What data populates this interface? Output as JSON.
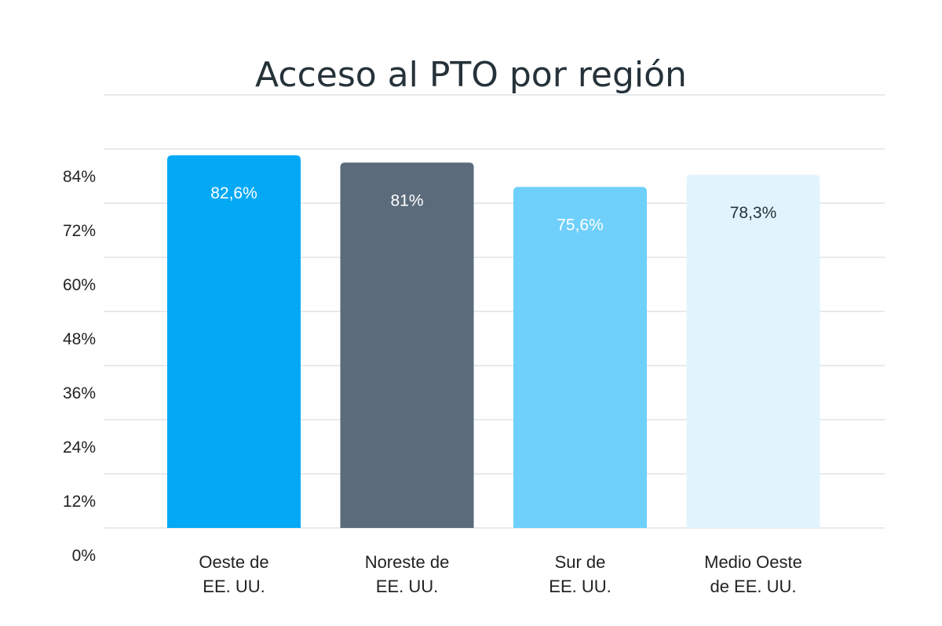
{
  "chart_data": {
    "type": "bar",
    "title": "Acceso al PTO por región",
    "xlabel": "",
    "ylabel": "",
    "ylim": [
      0,
      84
    ],
    "yticks": [
      "0%",
      "12%",
      "24%",
      "36%",
      "48%",
      "60%",
      "72%",
      "84%"
    ],
    "ytick_values": [
      0,
      12,
      24,
      36,
      48,
      60,
      72,
      84
    ],
    "grid": true,
    "categories": [
      [
        "Oeste de",
        "EE. UU."
      ],
      [
        "Noreste de",
        "EE. UU."
      ],
      [
        "Sur de",
        "EE. UU."
      ],
      [
        "Medio Oeste",
        "de EE. UU."
      ]
    ],
    "values": [
      82.6,
      81,
      75.6,
      78.3
    ],
    "data_labels": [
      "82,6%",
      "81%",
      "75,6%",
      "78,3%"
    ],
    "colors": [
      "#03a9f4",
      "#5b6b7b",
      "#6fd0fb",
      "#e1f4fd"
    ],
    "label_colors": [
      "#ffffff",
      "#ffffff",
      "#ffffff",
      "#26323a"
    ]
  }
}
